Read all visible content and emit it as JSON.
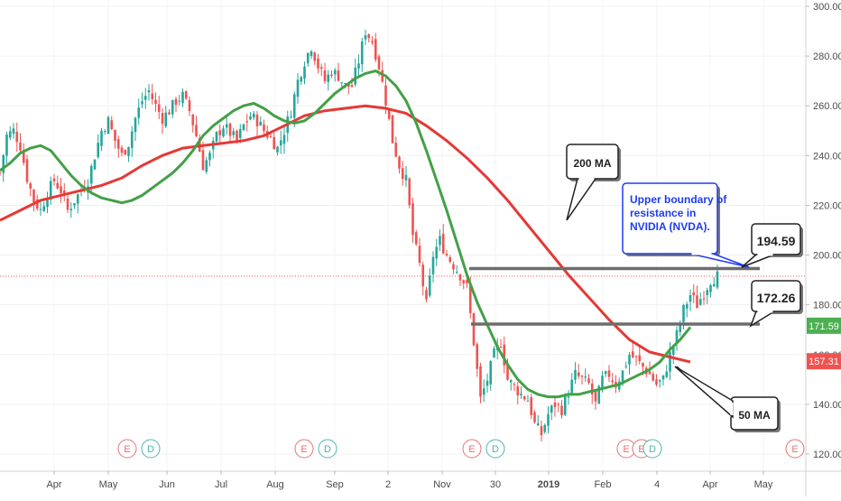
{
  "chart_data": {
    "type": "candlestick",
    "title": "",
    "y_axis": {
      "ticks": [
        "300.00",
        "280.00",
        "260.00",
        "240.00",
        "220.00",
        "200.00",
        "180.00",
        "160.00",
        "140.00",
        "120.00"
      ],
      "tick_values": [
        300,
        280,
        260,
        240,
        220,
        200,
        180,
        160,
        140,
        120
      ],
      "range": [
        118,
        303
      ]
    },
    "x_axis": {
      "labels": [
        "Apr",
        "May",
        "Jun",
        "Jul",
        "Aug",
        "Sep",
        "2",
        "Nov",
        "30",
        "2019",
        "Feb",
        "4",
        "Apr",
        "May"
      ]
    },
    "price_badges": [
      {
        "label": "171.59",
        "value": 171.59,
        "color": "#4caf50"
      },
      {
        "label": "157.31",
        "value": 157.31,
        "color": "#ef5350"
      }
    ],
    "current_price_line": 191.5,
    "series": [
      {
        "name": "50 MA",
        "color": "#43a047"
      },
      {
        "name": "200 MA",
        "color": "#e53935"
      }
    ],
    "resistance_levels": [
      {
        "label": "194.59",
        "value": 194.59
      },
      {
        "label": "172.26",
        "value": 172.26
      }
    ],
    "annotations": {
      "ma200_label": "200 MA",
      "ma50_label": "50 MA",
      "resistance_note": [
        "Upper boundary of",
        "resistance in",
        "NVIDIA (NVDA)."
      ]
    },
    "event_markers": [
      "E",
      "D",
      "E",
      "D",
      "E",
      "D",
      "E",
      "E",
      "D",
      "E"
    ],
    "ma50_points": [
      [
        0,
        234
      ],
      [
        3,
        237
      ],
      [
        6,
        241
      ],
      [
        9,
        243
      ],
      [
        12,
        244
      ],
      [
        15,
        242
      ],
      [
        18,
        237
      ],
      [
        21,
        232
      ],
      [
        24,
        228
      ],
      [
        27,
        225
      ],
      [
        30,
        223
      ],
      [
        33,
        222
      ],
      [
        36,
        221
      ],
      [
        39,
        222
      ],
      [
        42,
        224
      ],
      [
        45,
        227
      ],
      [
        48,
        230
      ],
      [
        51,
        233
      ],
      [
        54,
        237
      ],
      [
        57,
        242
      ],
      [
        60,
        248
      ],
      [
        63,
        252
      ],
      [
        66,
        255
      ],
      [
        69,
        258
      ],
      [
        72,
        260
      ],
      [
        75,
        261
      ],
      [
        78,
        259
      ],
      [
        81,
        256
      ],
      [
        84,
        254
      ],
      [
        87,
        253
      ],
      [
        90,
        254
      ],
      [
        93,
        257
      ],
      [
        96,
        261
      ],
      [
        99,
        265
      ],
      [
        102,
        268
      ],
      [
        105,
        271
      ],
      [
        108,
        273
      ],
      [
        111,
        274
      ],
      [
        114,
        272
      ],
      [
        117,
        268
      ],
      [
        120,
        262
      ],
      [
        123,
        253
      ],
      [
        126,
        242
      ],
      [
        129,
        230
      ],
      [
        132,
        218
      ],
      [
        135,
        205
      ],
      [
        138,
        192
      ],
      [
        141,
        181
      ],
      [
        144,
        172
      ],
      [
        147,
        163
      ],
      [
        150,
        156
      ],
      [
        153,
        150
      ],
      [
        156,
        146
      ],
      [
        159,
        144
      ],
      [
        162,
        143
      ],
      [
        165,
        143
      ],
      [
        168,
        144
      ],
      [
        171,
        144
      ],
      [
        174,
        145
      ],
      [
        177,
        146
      ],
      [
        180,
        147
      ],
      [
        183,
        148
      ],
      [
        186,
        150
      ],
      [
        189,
        152
      ],
      [
        192,
        154
      ],
      [
        195,
        157
      ],
      [
        198,
        162
      ],
      [
        201,
        166
      ],
      [
        204,
        171
      ]
    ],
    "ma200_points": [
      [
        0,
        214
      ],
      [
        6,
        218
      ],
      [
        12,
        222
      ],
      [
        18,
        224
      ],
      [
        24,
        226
      ],
      [
        30,
        228
      ],
      [
        36,
        231
      ],
      [
        42,
        236
      ],
      [
        48,
        240
      ],
      [
        54,
        243
      ],
      [
        60,
        244
      ],
      [
        66,
        245
      ],
      [
        72,
        246
      ],
      [
        78,
        248
      ],
      [
        84,
        252
      ],
      [
        90,
        256
      ],
      [
        96,
        258
      ],
      [
        102,
        259
      ],
      [
        108,
        260
      ],
      [
        114,
        259
      ],
      [
        120,
        257
      ],
      [
        126,
        252
      ],
      [
        132,
        246
      ],
      [
        138,
        239
      ],
      [
        144,
        231
      ],
      [
        150,
        222
      ],
      [
        156,
        212
      ],
      [
        162,
        202
      ],
      [
        168,
        192
      ],
      [
        174,
        183
      ],
      [
        180,
        174
      ],
      [
        186,
        166
      ],
      [
        192,
        161
      ],
      [
        198,
        159
      ],
      [
        204,
        157
      ]
    ],
    "close_points": [
      [
        0,
        233
      ],
      [
        2,
        248
      ],
      [
        4,
        250
      ],
      [
        6,
        244
      ],
      [
        8,
        231
      ],
      [
        10,
        222
      ],
      [
        12,
        218
      ],
      [
        14,
        225
      ],
      [
        16,
        230
      ],
      [
        18,
        226
      ],
      [
        20,
        218
      ],
      [
        22,
        222
      ],
      [
        24,
        226
      ],
      [
        26,
        230
      ],
      [
        28,
        240
      ],
      [
        30,
        250
      ],
      [
        32,
        254
      ],
      [
        34,
        246
      ],
      [
        36,
        240
      ],
      [
        38,
        245
      ],
      [
        40,
        255
      ],
      [
        42,
        262
      ],
      [
        44,
        266
      ],
      [
        46,
        260
      ],
      [
        48,
        255
      ],
      [
        50,
        258
      ],
      [
        52,
        262
      ],
      [
        54,
        264
      ],
      [
        56,
        258
      ],
      [
        58,
        248
      ],
      [
        60,
        236
      ],
      [
        62,
        240
      ],
      [
        64,
        248
      ],
      [
        66,
        252
      ],
      [
        68,
        249
      ],
      [
        70,
        246
      ],
      [
        72,
        252
      ],
      [
        74,
        256
      ],
      [
        76,
        254
      ],
      [
        78,
        250
      ],
      [
        80,
        247
      ],
      [
        82,
        243
      ],
      [
        84,
        250
      ],
      [
        86,
        258
      ],
      [
        88,
        270
      ],
      [
        90,
        278
      ],
      [
        92,
        284
      ],
      [
        94,
        276
      ],
      [
        96,
        270
      ],
      [
        98,
        274
      ],
      [
        100,
        272
      ],
      [
        102,
        268
      ],
      [
        104,
        268
      ],
      [
        106,
        278
      ],
      [
        108,
        290
      ],
      [
        110,
        286
      ],
      [
        112,
        276
      ],
      [
        114,
        262
      ],
      [
        116,
        246
      ],
      [
        118,
        236
      ],
      [
        120,
        230
      ],
      [
        122,
        208
      ],
      [
        124,
        196
      ],
      [
        126,
        180
      ],
      [
        128,
        200
      ],
      [
        130,
        206
      ],
      [
        132,
        200
      ],
      [
        134,
        196
      ],
      [
        136,
        192
      ],
      [
        138,
        187
      ],
      [
        140,
        165
      ],
      [
        142,
        142
      ],
      [
        144,
        150
      ],
      [
        146,
        160
      ],
      [
        148,
        165
      ],
      [
        150,
        150
      ],
      [
        152,
        147
      ],
      [
        154,
        144
      ],
      [
        156,
        142
      ],
      [
        158,
        132
      ],
      [
        160,
        128
      ],
      [
        162,
        136
      ],
      [
        164,
        140
      ],
      [
        166,
        138
      ],
      [
        168,
        145
      ],
      [
        170,
        152
      ],
      [
        172,
        150
      ],
      [
        174,
        148
      ],
      [
        176,
        140
      ],
      [
        178,
        150
      ],
      [
        180,
        152
      ],
      [
        182,
        148
      ],
      [
        184,
        153
      ],
      [
        186,
        160
      ],
      [
        188,
        158
      ],
      [
        190,
        155
      ],
      [
        192,
        152
      ],
      [
        194,
        148
      ],
      [
        196,
        150
      ],
      [
        198,
        160
      ],
      [
        200,
        168
      ],
      [
        202,
        178
      ],
      [
        204,
        184
      ],
      [
        206,
        180
      ],
      [
        208,
        185
      ],
      [
        210,
        190
      ],
      [
        212,
        191.5
      ]
    ]
  }
}
